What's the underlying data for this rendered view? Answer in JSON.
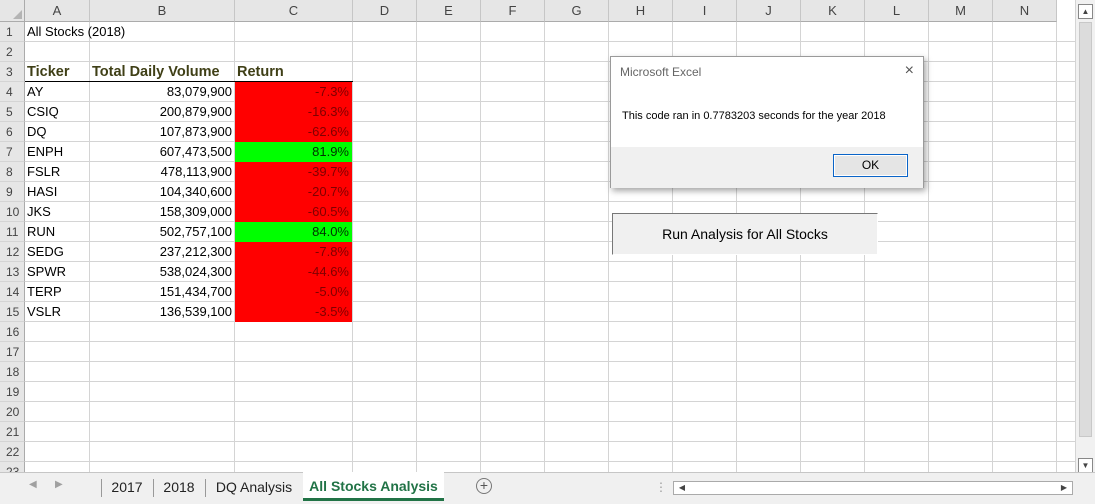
{
  "columns": [
    "A",
    "B",
    "C",
    "D",
    "E",
    "F",
    "G",
    "H",
    "I",
    "J",
    "K",
    "L",
    "M",
    "N"
  ],
  "rows": [
    "1",
    "2",
    "3",
    "4",
    "5",
    "6",
    "7",
    "8",
    "9",
    "10",
    "11",
    "12",
    "13",
    "14",
    "15",
    "16",
    "17",
    "18",
    "19",
    "20",
    "21",
    "22",
    "23"
  ],
  "sheet": {
    "title": "All Stocks (2018)",
    "headers": {
      "ticker": "Ticker",
      "volume": "Total Daily Volume",
      "return": "Return"
    },
    "data": [
      {
        "ticker": "AY",
        "volume": "83,079,900",
        "return": "-7.3%",
        "positive": false
      },
      {
        "ticker": "CSIQ",
        "volume": "200,879,900",
        "return": "-16.3%",
        "positive": false
      },
      {
        "ticker": "DQ",
        "volume": "107,873,900",
        "return": "-62.6%",
        "positive": false
      },
      {
        "ticker": "ENPH",
        "volume": "607,473,500",
        "return": "81.9%",
        "positive": true
      },
      {
        "ticker": "FSLR",
        "volume": "478,113,900",
        "return": "-39.7%",
        "positive": false
      },
      {
        "ticker": "HASI",
        "volume": "104,340,600",
        "return": "-20.7%",
        "positive": false
      },
      {
        "ticker": "JKS",
        "volume": "158,309,000",
        "return": "-60.5%",
        "positive": false
      },
      {
        "ticker": "RUN",
        "volume": "502,757,100",
        "return": "84.0%",
        "positive": true
      },
      {
        "ticker": "SEDG",
        "volume": "237,212,300",
        "return": "-7.8%",
        "positive": false
      },
      {
        "ticker": "SPWR",
        "volume": "538,024,300",
        "return": "-44.6%",
        "positive": false
      },
      {
        "ticker": "TERP",
        "volume": "151,434,700",
        "return": "-5.0%",
        "positive": false
      },
      {
        "ticker": "VSLR",
        "volume": "136,539,100",
        "return": "-3.5%",
        "positive": false
      }
    ]
  },
  "colors": {
    "negative_fill": "#ff0000",
    "positive_fill": "#00ff00",
    "active_tab": "#217346"
  },
  "dialog": {
    "title": "Microsoft Excel",
    "message": "This code ran in 0.7783203 seconds for the year 2018",
    "ok_label": "OK",
    "close_icon": "×"
  },
  "run_button": {
    "label": "Run Analysis for All Stocks"
  },
  "tabs": [
    {
      "label": "2017",
      "active": false
    },
    {
      "label": "2018",
      "active": false
    },
    {
      "label": "DQ Analysis",
      "active": false
    },
    {
      "label": "All Stocks Analysis",
      "active": true
    }
  ],
  "icons": {
    "add_sheet": "⊕",
    "prev": "◀",
    "next": "▶",
    "scroll_up": "▲",
    "scroll_down": "▼",
    "more": "⋮"
  }
}
